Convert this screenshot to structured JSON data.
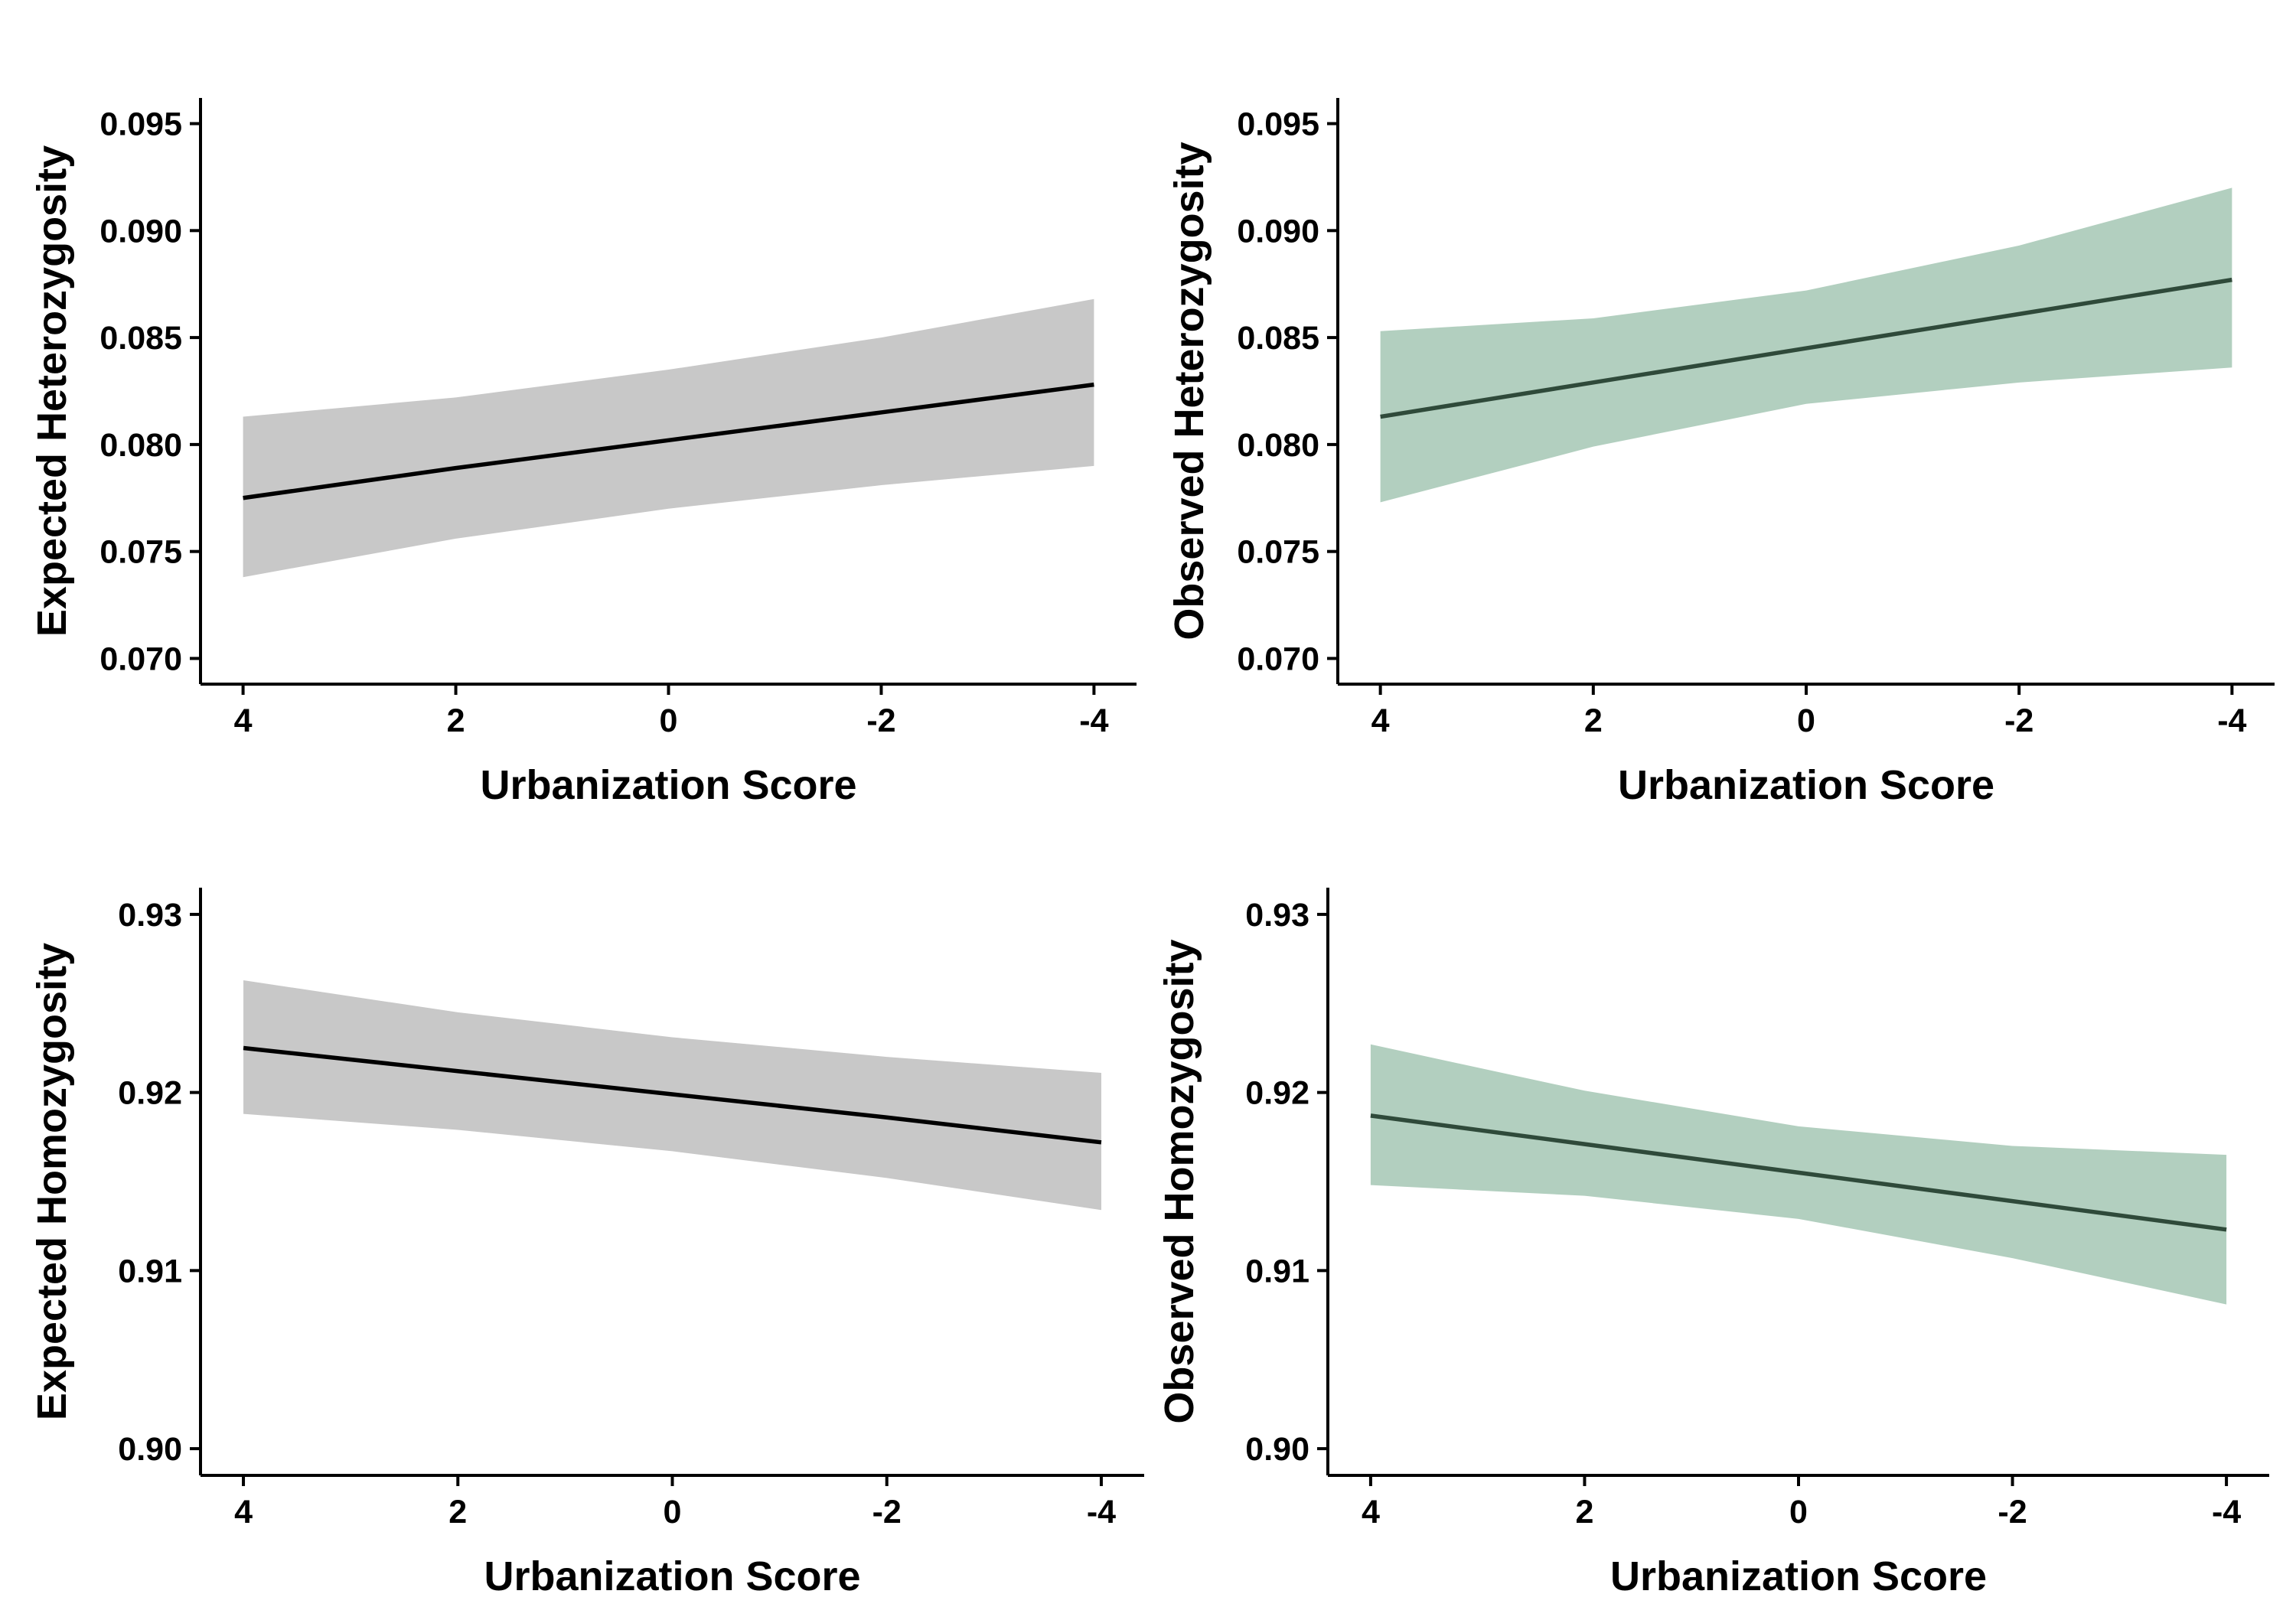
{
  "colors": {
    "gray_band": "#c8c8c8",
    "gray_line": "#000000",
    "green_band": "#b2cfbf",
    "green_line": "#2f4a3a",
    "axis": "#000000"
  },
  "chart_data": [
    {
      "type": "line",
      "xlabel": "Urbanization Score",
      "ylabel": "Expected Heterozygosity",
      "x_ticks": [
        "4",
        "2",
        "0",
        "-2",
        "-4"
      ],
      "y_ticks": [
        "0.070",
        "0.075",
        "0.080",
        "0.085",
        "0.090",
        "0.095"
      ],
      "xlim": [
        4.4,
        -4.4
      ],
      "ylim": [
        0.0688,
        0.0962
      ],
      "x_reversed": true,
      "grid": false,
      "series": [
        {
          "style": "gray",
          "x": [
            4,
            2,
            0,
            -2,
            -4
          ],
          "y": [
            0.0775,
            0.0789,
            0.0802,
            0.0815,
            0.0828
          ],
          "lower": [
            0.0738,
            0.0756,
            0.077,
            0.0781,
            0.079
          ],
          "upper": [
            0.0813,
            0.0822,
            0.0835,
            0.085,
            0.0868
          ]
        }
      ]
    },
    {
      "type": "line",
      "xlabel": "Urbanization Score",
      "ylabel": "Observed Heterozygosity",
      "x_ticks": [
        "4",
        "2",
        "0",
        "-2",
        "-4"
      ],
      "y_ticks": [
        "0.070",
        "0.075",
        "0.080",
        "0.085",
        "0.090",
        "0.095"
      ],
      "xlim": [
        4.4,
        -4.4
      ],
      "ylim": [
        0.0688,
        0.0962
      ],
      "x_reversed": true,
      "grid": false,
      "series": [
        {
          "style": "green",
          "x": [
            4,
            2,
            0,
            -2,
            -4
          ],
          "y": [
            0.0813,
            0.0829,
            0.0845,
            0.0861,
            0.0877
          ],
          "lower": [
            0.0773,
            0.0799,
            0.0819,
            0.0829,
            0.0836
          ],
          "upper": [
            0.0853,
            0.0859,
            0.0872,
            0.0893,
            0.092
          ]
        }
      ]
    },
    {
      "type": "line",
      "xlabel": "Urbanization Score",
      "ylabel": "Expected Homozygosity",
      "x_ticks": [
        "4",
        "2",
        "0",
        "-2",
        "-4"
      ],
      "y_ticks": [
        "0.90",
        "0.91",
        "0.92",
        "0.93"
      ],
      "xlim": [
        4.4,
        -4.4
      ],
      "ylim": [
        0.8985,
        0.9315
      ],
      "x_reversed": true,
      "grid": false,
      "series": [
        {
          "style": "gray",
          "x": [
            4,
            2,
            0,
            -2,
            -4
          ],
          "y": [
            0.9225,
            0.9212,
            0.9199,
            0.9186,
            0.9172
          ],
          "lower": [
            0.9188,
            0.9179,
            0.9167,
            0.9152,
            0.9134
          ],
          "upper": [
            0.9263,
            0.9245,
            0.9231,
            0.922,
            0.9211
          ]
        }
      ]
    },
    {
      "type": "line",
      "xlabel": "Urbanization Score",
      "ylabel": "Observed Homozygosity",
      "x_ticks": [
        "4",
        "2",
        "0",
        "-2",
        "-4"
      ],
      "y_ticks": [
        "0.90",
        "0.91",
        "0.92",
        "0.93"
      ],
      "xlim": [
        4.4,
        -4.4
      ],
      "ylim": [
        0.8985,
        0.9315
      ],
      "x_reversed": true,
      "grid": false,
      "series": [
        {
          "style": "green",
          "x": [
            4,
            2,
            0,
            -2,
            -4
          ],
          "y": [
            0.9187,
            0.9171,
            0.9155,
            0.9139,
            0.9123
          ],
          "lower": [
            0.9148,
            0.9142,
            0.9129,
            0.9107,
            0.9081
          ],
          "upper": [
            0.9227,
            0.9201,
            0.9181,
            0.917,
            0.9165
          ]
        }
      ]
    }
  ]
}
